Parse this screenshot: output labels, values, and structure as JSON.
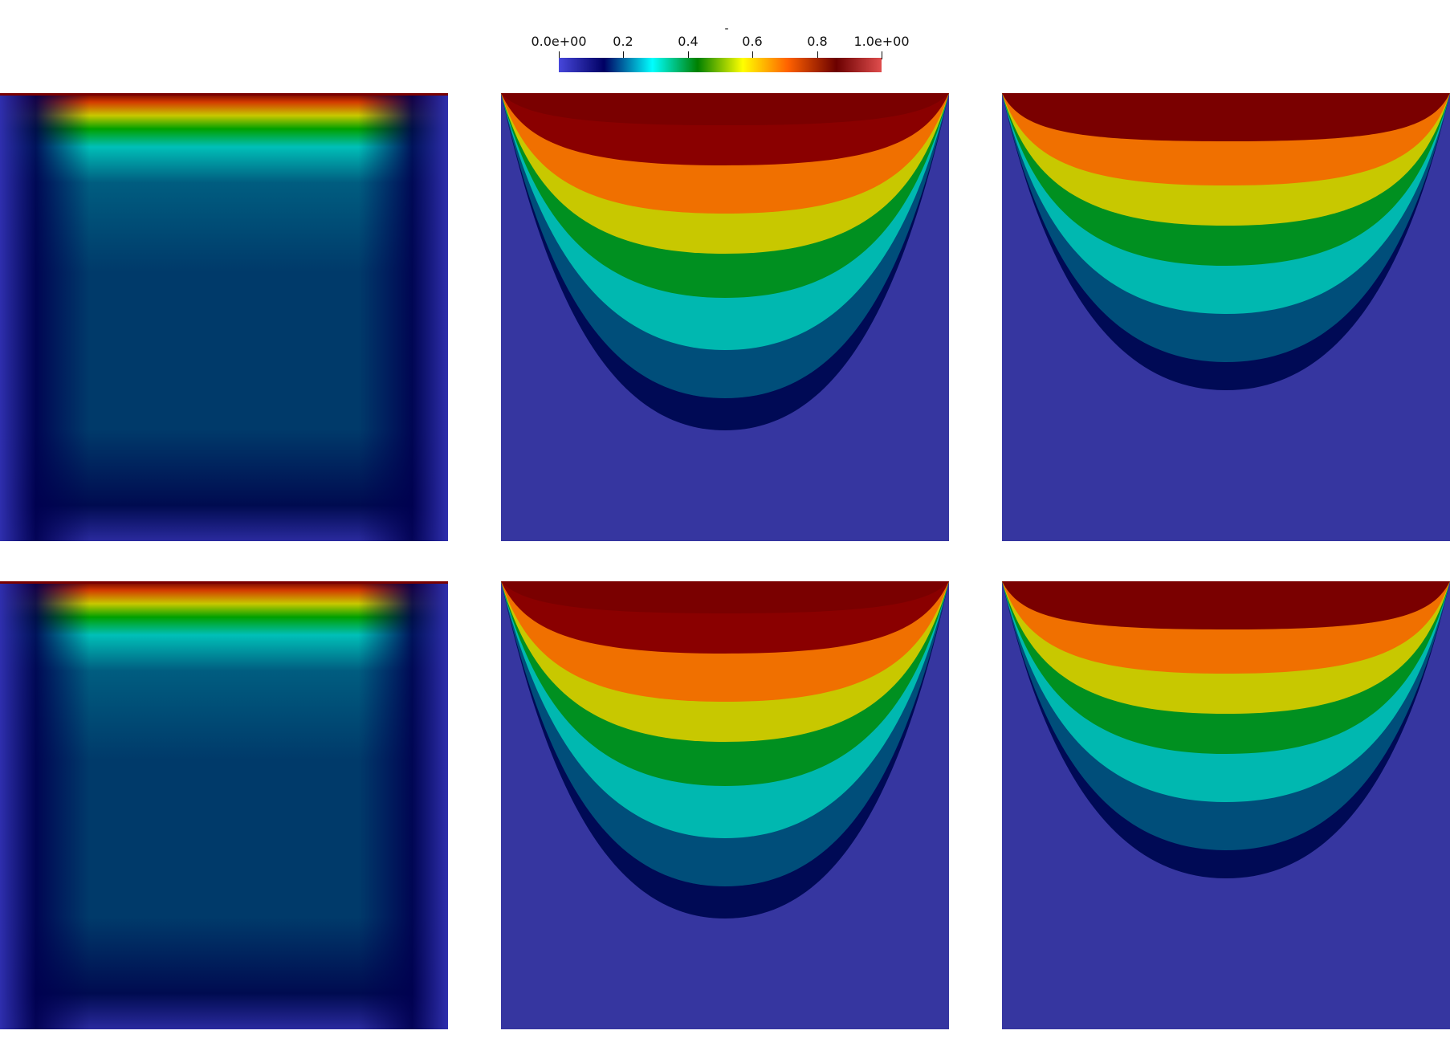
{
  "colorbar": {
    "title": "-",
    "range": [
      0,
      1
    ],
    "ticks": [
      {
        "value": 0.0,
        "label": "0.0e+00"
      },
      {
        "value": 0.2,
        "label": "0.2"
      },
      {
        "value": 0.4,
        "label": "0.4"
      },
      {
        "value": 0.6,
        "label": "0.6"
      },
      {
        "value": 0.8,
        "label": "0.8"
      },
      {
        "value": 1.0,
        "label": "1.0e+00"
      }
    ],
    "colormap": [
      {
        "pos": 0.0,
        "color": "#4747db"
      },
      {
        "pos": 0.14,
        "color": "#000063"
      },
      {
        "pos": 0.29,
        "color": "#00ffff"
      },
      {
        "pos": 0.43,
        "color": "#008000"
      },
      {
        "pos": 0.57,
        "color": "#ffff00"
      },
      {
        "pos": 0.71,
        "color": "#ff6100"
      },
      {
        "pos": 0.86,
        "color": "#6b0000"
      },
      {
        "pos": 1.0,
        "color": "#e04d4d"
      }
    ]
  },
  "panels": [
    {
      "row": 1,
      "col": 1,
      "pattern": "boundary-layer"
    },
    {
      "row": 1,
      "col": 2,
      "pattern": "bowl"
    },
    {
      "row": 1,
      "col": 3,
      "pattern": "bowl"
    },
    {
      "row": 2,
      "col": 1,
      "pattern": "boundary-layer"
    },
    {
      "row": 2,
      "col": 2,
      "pattern": "bowl"
    },
    {
      "row": 2,
      "col": 3,
      "pattern": "bowl"
    }
  ]
}
